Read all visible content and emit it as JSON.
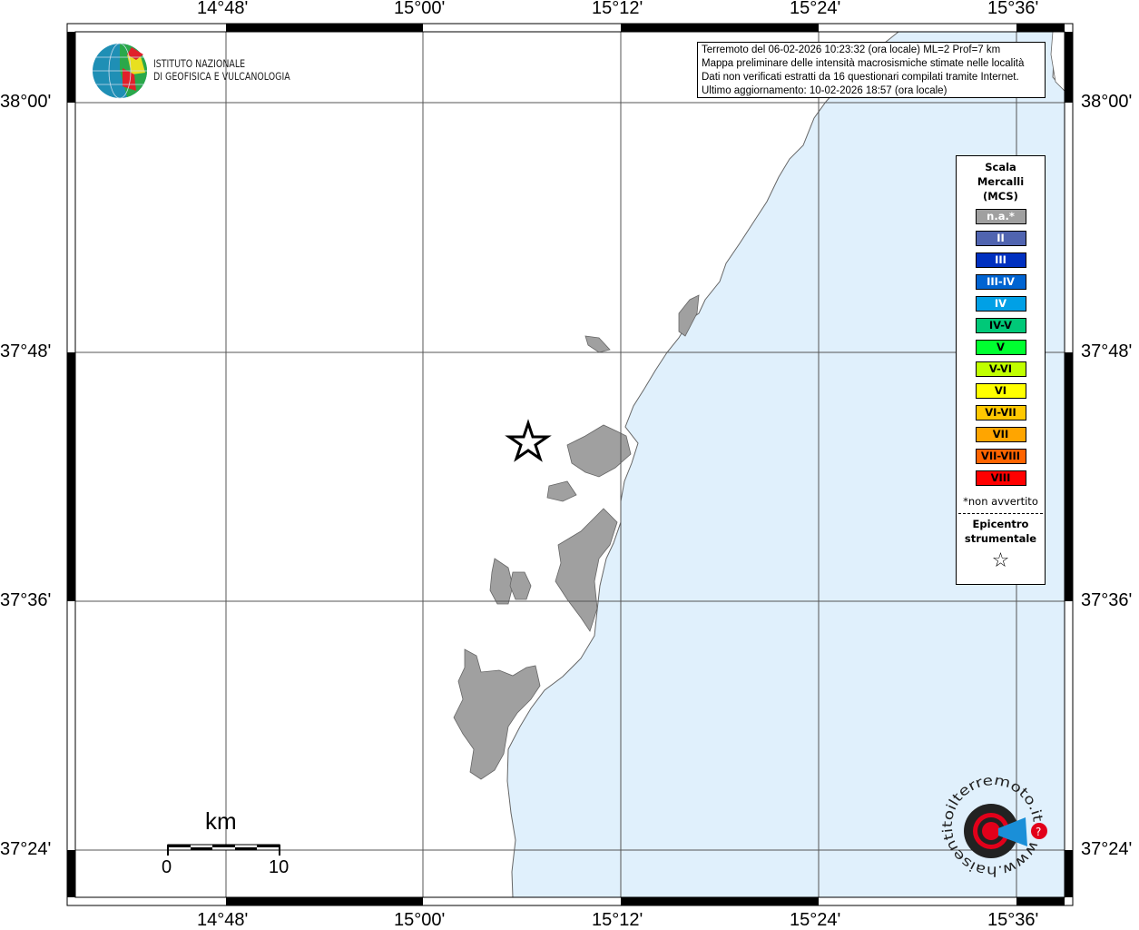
{
  "map": {
    "lon_ticks": [
      "14°48'",
      "15°00'",
      "15°12'",
      "15°24'",
      "15°36'"
    ],
    "lat_ticks": [
      "38°00'",
      "37°48'",
      "37°36'",
      "37°24'"
    ],
    "sea_color": "#e0f0fc",
    "urban_color": "#a0a0a0"
  },
  "logo": {
    "line1": "ISTITUTO NAZIONALE",
    "line2": "DI GEOFISICA E VULCANOLOGIA"
  },
  "info": {
    "line1": "Terremoto del 06-02-2026 10:23:32 (ora locale) ML=2 Prof=7 km",
    "line2": "Mappa preliminare delle intensità macrosismiche stimate nelle località",
    "line3": "Dati non verificati estratti da 16 questionari compilati tramite Internet.",
    "line4": "Ultimo aggiornamento: 10-02-2026 18:57 (ora locale)"
  },
  "legend": {
    "title1": "Scala",
    "title2": "Mercalli",
    "title3": "(MCS)",
    "items": [
      {
        "label": "n.a.*",
        "color": "#a0a0a0",
        "text": "#ffffff"
      },
      {
        "label": "II",
        "color": "#5064b0",
        "text": "#ffffff"
      },
      {
        "label": "III",
        "color": "#0030c0",
        "text": "#ffffff"
      },
      {
        "label": "III-IV",
        "color": "#0064d2",
        "text": "#ffffff"
      },
      {
        "label": "IV",
        "color": "#00a0e6",
        "text": "#ffffff"
      },
      {
        "label": "IV-V",
        "color": "#00c878",
        "text": "#000000"
      },
      {
        "label": "V",
        "color": "#00ff30",
        "text": "#000000"
      },
      {
        "label": "V-VI",
        "color": "#c0ff00",
        "text": "#000000"
      },
      {
        "label": "VI",
        "color": "#ffff00",
        "text": "#000000"
      },
      {
        "label": "VI-VII",
        "color": "#ffc800",
        "text": "#000000"
      },
      {
        "label": "VII",
        "color": "#ffa500",
        "text": "#000000"
      },
      {
        "label": "VII-VIII",
        "color": "#ff6400",
        "text": "#000000"
      },
      {
        "label": "VIII",
        "color": "#ff0000",
        "text": "#000000"
      }
    ],
    "note": "*non avvertito",
    "epi1": "Epicentro",
    "epi2": "strumentale",
    "star": "☆"
  },
  "scale": {
    "unit": "km",
    "min": "0",
    "max": "10"
  },
  "badge": {
    "text": "www.haisentitoilterremoto.it"
  }
}
